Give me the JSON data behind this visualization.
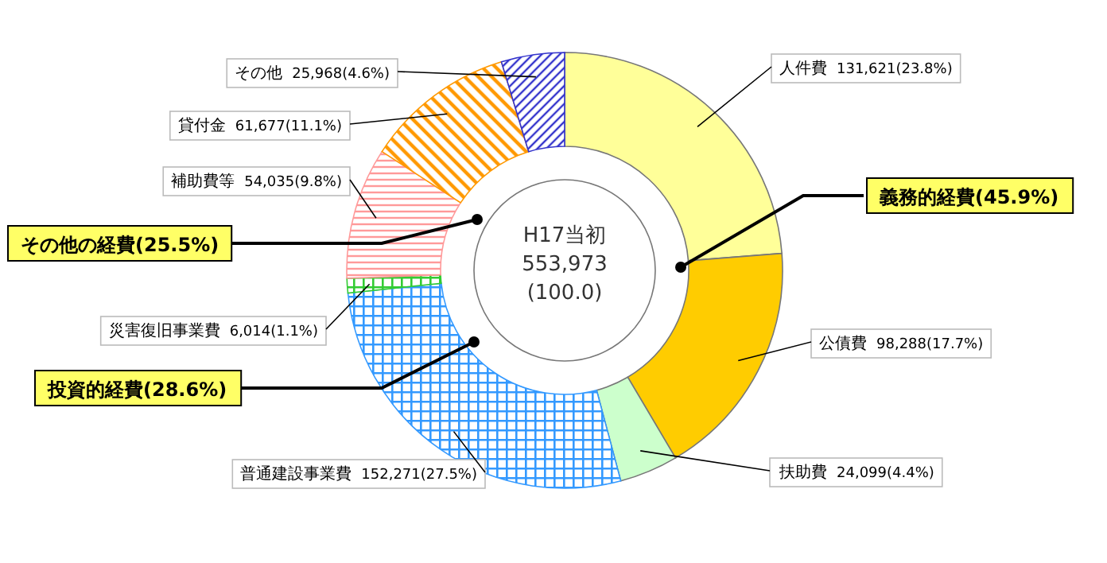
{
  "chart_data": {
    "type": "donut",
    "categories": [
      "人件費",
      "公債費",
      "扶助費",
      "普通建設事業費",
      "災害復旧事業費",
      "補助費等",
      "貸付金",
      "その他"
    ],
    "values": [
      131621,
      98288,
      24099,
      152271,
      6014,
      54035,
      61677,
      25968
    ],
    "value_labels": [
      "131,621(23.8%)",
      "98,288(17.7%)",
      "24,099(4.4%)",
      "152,271(27.5%)",
      "6,014(1.1%)",
      "54,035(9.8%)",
      "61,677(11.1%)",
      "25,968(4.6%)"
    ],
    "colors": [
      "#ffff99",
      "#ffcc00",
      "#ccffcc",
      "#3399ff",
      "#33cc33",
      "#ff9999",
      "#ff9900",
      "#3333cc"
    ],
    "annotations": [
      "H17当初",
      "553,973",
      "(100.0)",
      "義務的経費(45.9%)",
      "その他の経費(25.5%)",
      "投資的経費(28.6%)"
    ]
  }
}
